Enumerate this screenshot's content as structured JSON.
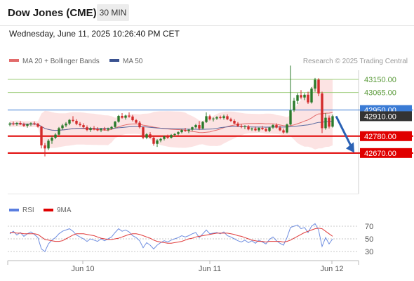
{
  "header": {
    "title": "Dow Jones (CME)",
    "interval": "30 MIN",
    "datetime": "Wednesday, June 11, 2025 10:26:40 PM CET"
  },
  "legend": {
    "ma20_bb": "MA 20 + Bollinger Bands",
    "ma50": "MA 50",
    "credit": "Research © 2025 Trading Central",
    "rsi": "RSI",
    "rsi_ma": "9MA"
  },
  "colors": {
    "up": "#2a7a2a",
    "down": "#d32a2a",
    "ma20": "#e26a6a",
    "ma50": "#5a6aa0",
    "bollinger": "#fbdada",
    "resistance": "#9ccc7a",
    "pivot": "#3a7bd5",
    "support": "#e00000",
    "current_price": "#333333",
    "rsi": "#6f8ee0",
    "rsi_ma": "#e03a3a",
    "arrow": "#2a62b5"
  },
  "chart_data": [
    {
      "type": "candlestick",
      "title": "Dow Jones (CME)",
      "ylim": [
        42600,
        43200
      ],
      "x_ticks": [
        "Jun 10",
        "Jun 11",
        "Jun 12"
      ],
      "levels": [
        {
          "label": "43150.00",
          "value": 43150,
          "kind": "resistance"
        },
        {
          "label": "43065.00",
          "value": 43065,
          "kind": "resistance"
        },
        {
          "label": "42950.00",
          "value": 42950,
          "kind": "pivot"
        },
        {
          "label": "42780.00",
          "value": 42780,
          "kind": "support"
        },
        {
          "label": "42670.00",
          "value": 42670,
          "kind": "support"
        }
      ],
      "current_price": {
        "label": "42910.00",
        "value": 42910
      },
      "forecast": {
        "direction": "down",
        "from": 42910,
        "to": 42672
      },
      "candles": [
        [
          42855,
          42870,
          42845,
          42862
        ],
        [
          42862,
          42875,
          42850,
          42858
        ],
        [
          42858,
          42872,
          42848,
          42866
        ],
        [
          42866,
          42878,
          42852,
          42856
        ],
        [
          42856,
          42868,
          42840,
          42848
        ],
        [
          42848,
          42862,
          42835,
          42858
        ],
        [
          42858,
          42870,
          42846,
          42864
        ],
        [
          42864,
          42876,
          42852,
          42860
        ],
        [
          42860,
          42866,
          42836,
          42842
        ],
        [
          42842,
          42848,
          42700,
          42720
        ],
        [
          42720,
          42735,
          42648,
          42700
        ],
        [
          42700,
          42760,
          42690,
          42750
        ],
        [
          42750,
          42780,
          42730,
          42770
        ],
        [
          42770,
          42800,
          42760,
          42790
        ],
        [
          42790,
          42840,
          42785,
          42832
        ],
        [
          42832,
          42860,
          42822,
          42850
        ],
        [
          42850,
          42872,
          42838,
          42862
        ],
        [
          42862,
          42892,
          42852,
          42886
        ],
        [
          42886,
          42910,
          42870,
          42880
        ],
        [
          42880,
          42890,
          42852,
          42860
        ],
        [
          42860,
          42872,
          42842,
          42852
        ],
        [
          42852,
          42864,
          42830,
          42838
        ],
        [
          42838,
          42850,
          42812,
          42820
        ],
        [
          42820,
          42840,
          42808,
          42832
        ],
        [
          42832,
          42846,
          42818,
          42826
        ],
        [
          42826,
          42838,
          42812,
          42818
        ],
        [
          42818,
          42834,
          42806,
          42828
        ],
        [
          42828,
          42840,
          42816,
          42822
        ],
        [
          42822,
          42836,
          42812,
          42830
        ],
        [
          42830,
          42846,
          42822,
          42840
        ],
        [
          42840,
          42880,
          42832,
          42874
        ],
        [
          42874,
          42918,
          42868,
          42912
        ],
        [
          42912,
          42930,
          42894,
          42900
        ],
        [
          42900,
          42920,
          42888,
          42914
        ],
        [
          42914,
          42935,
          42900,
          42908
        ],
        [
          42908,
          42918,
          42876,
          42884
        ],
        [
          42884,
          42892,
          42862,
          42868
        ],
        [
          42868,
          42880,
          42830,
          42838
        ],
        [
          42838,
          42842,
          42760,
          42770
        ],
        [
          42770,
          42800,
          42760,
          42792
        ],
        [
          42792,
          42806,
          42765,
          42770
        ],
        [
          42770,
          42780,
          42718,
          42730
        ],
        [
          42730,
          42760,
          42710,
          42752
        ],
        [
          42752,
          42770,
          42740,
          42762
        ],
        [
          42762,
          42784,
          42752,
          42778
        ],
        [
          42778,
          42790,
          42762,
          42770
        ],
        [
          42770,
          42794,
          42764,
          42788
        ],
        [
          42788,
          42800,
          42776,
          42794
        ],
        [
          42794,
          42812,
          42786,
          42806
        ],
        [
          42806,
          42826,
          42798,
          42820
        ],
        [
          42820,
          42834,
          42808,
          42814
        ],
        [
          42814,
          42826,
          42800,
          42822
        ],
        [
          42822,
          42842,
          42814,
          42838
        ],
        [
          42838,
          42860,
          42830,
          42852
        ],
        [
          42852,
          42878,
          42820,
          42830
        ],
        [
          42830,
          42880,
          42824,
          42872
        ],
        [
          42872,
          42935,
          42866,
          42910
        ],
        [
          42910,
          42920,
          42882,
          42890
        ],
        [
          42890,
          42902,
          42876,
          42895
        ],
        [
          42895,
          42910,
          42886,
          42904
        ],
        [
          42904,
          42914,
          42890,
          42898
        ],
        [
          42898,
          42920,
          42888,
          42910
        ],
        [
          42910,
          42922,
          42884,
          42890
        ],
        [
          42890,
          42900,
          42872,
          42880
        ],
        [
          42880,
          42890,
          42858,
          42862
        ],
        [
          42862,
          42872,
          42840,
          42846
        ],
        [
          42846,
          42858,
          42832,
          42840
        ],
        [
          42840,
          42852,
          42826,
          42844
        ],
        [
          42844,
          42852,
          42818,
          42824
        ],
        [
          42824,
          42836,
          42814,
          42830
        ],
        [
          42830,
          42842,
          42812,
          42818
        ],
        [
          42818,
          42838,
          42808,
          42834
        ],
        [
          42834,
          42846,
          42820,
          42826
        ],
        [
          42826,
          42836,
          42808,
          42814
        ],
        [
          42814,
          42840,
          42806,
          42836
        ],
        [
          42836,
          42858,
          42828,
          42852
        ],
        [
          42852,
          42864,
          42830,
          42836
        ],
        [
          42836,
          42848,
          42812,
          42818
        ],
        [
          42818,
          42830,
          42796,
          42804
        ],
        [
          42804,
          42862,
          42798,
          42856
        ],
        [
          42856,
          43240,
          42850,
          42948
        ],
        [
          42948,
          43030,
          42938,
          43010
        ],
        [
          43010,
          43060,
          42990,
          43048
        ],
        [
          43048,
          43080,
          43020,
          43032
        ],
        [
          43032,
          43060,
          43015,
          43050
        ],
        [
          43050,
          43070,
          42990,
          43000
        ],
        [
          43000,
          43100,
          42992,
          43090
        ],
        [
          43090,
          43160,
          43070,
          43148
        ],
        [
          43148,
          43158,
          43040,
          43058
        ],
        [
          43058,
          43070,
          42800,
          42832
        ],
        [
          42832,
          42930,
          42822,
          42900
        ],
        [
          42900,
          42915,
          42830,
          42842
        ],
        [
          42842,
          42920,
          42836,
          42910
        ]
      ]
    },
    {
      "type": "line",
      "title": "RSI",
      "ylim": [
        20,
        80
      ],
      "y_ticks": [
        70,
        50,
        30
      ],
      "series": [
        {
          "name": "RSI",
          "values": [
            58,
            62,
            56,
            60,
            54,
            58,
            61,
            57,
            52,
            34,
            30,
            42,
            48,
            52,
            58,
            62,
            64,
            66,
            62,
            56,
            53,
            50,
            46,
            50,
            48,
            46,
            50,
            47,
            50,
            53,
            60,
            66,
            62,
            64,
            61,
            55,
            52,
            47,
            36,
            44,
            40,
            34,
            40,
            44,
            47,
            45,
            48,
            50,
            52,
            55,
            53,
            55,
            58,
            60,
            52,
            58,
            64,
            58,
            59,
            60,
            58,
            61,
            55,
            53,
            50,
            47,
            45,
            48,
            44,
            47,
            43,
            48,
            45,
            42,
            49,
            53,
            47,
            43,
            40,
            52,
            68,
            70,
            72,
            66,
            68,
            60,
            70,
            74,
            64,
            38,
            52,
            42,
            50
          ]
        },
        {
          "name": "9MA",
          "values": [
            60,
            60,
            59,
            59,
            58,
            58,
            58,
            58,
            57,
            53,
            49,
            48,
            47,
            46,
            46,
            47,
            50,
            53,
            56,
            58,
            58,
            58,
            57,
            56,
            55,
            53,
            51,
            50,
            49,
            49,
            50,
            51,
            53,
            55,
            57,
            58,
            58,
            57,
            55,
            53,
            51,
            48,
            46,
            45,
            44,
            43,
            43,
            44,
            45,
            46,
            48,
            50,
            51,
            53,
            54,
            55,
            56,
            57,
            58,
            59,
            59,
            59,
            59,
            58,
            57,
            55,
            54,
            52,
            50,
            48,
            47,
            46,
            46,
            45,
            46,
            46,
            46,
            46,
            45,
            46,
            48,
            51,
            54,
            57,
            60,
            62,
            64,
            66,
            67,
            66,
            62,
            58,
            54
          ]
        }
      ]
    }
  ]
}
